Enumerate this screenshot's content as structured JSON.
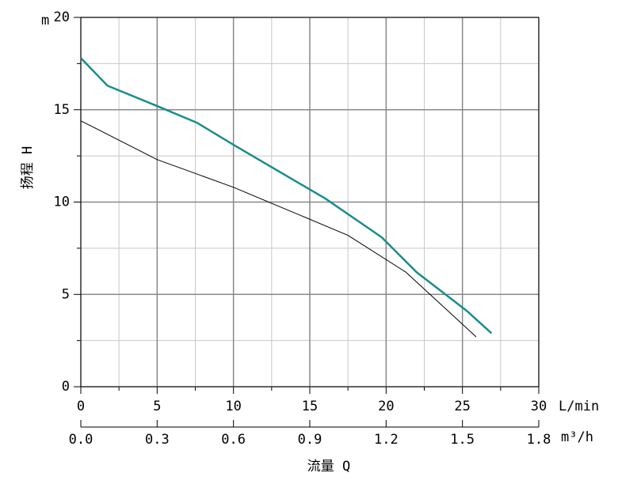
{
  "chart_data": {
    "type": "line",
    "y_label": "扬程 H",
    "x_label": "流量 Q",
    "y_unit": "m",
    "x_unit": "L/min",
    "x2_unit": "m³/h",
    "xlim": [
      0,
      30
    ],
    "xticks": [
      0,
      5,
      10,
      15,
      20,
      25,
      30
    ],
    "minor_xticks": [
      2.5,
      7.5,
      12.5,
      17.5,
      22.5,
      27.5
    ],
    "ylim": [
      0,
      20
    ],
    "yticks": [
      0,
      5,
      10,
      15,
      20
    ],
    "minor_yticks": [
      2.5,
      7.5,
      12.5,
      17.5
    ],
    "x2lim": [
      0,
      1.8
    ],
    "x2ticks": [
      {
        "value": 0,
        "label": "0.0"
      },
      0.3,
      0.6,
      0.9,
      1.2,
      1.5,
      1.8
    ],
    "grid": true,
    "series": [
      {
        "color": "#1a8c8c",
        "x": [
          0,
          1.75,
          5,
          7.6,
          10,
          16,
          19.7,
          22,
          25.3,
          26.9
        ],
        "values": [
          17.8,
          16.3,
          15.2,
          14.3,
          13.1,
          10.2,
          8.1,
          6.2,
          4.1,
          2.9
        ]
      },
      {
        "color": "#000000",
        "x": [
          0,
          5,
          10,
          17.5,
          21.3,
          25.9
        ],
        "values": [
          14.4,
          12.3,
          10.8,
          8.2,
          6.2,
          2.7
        ]
      }
    ]
  }
}
